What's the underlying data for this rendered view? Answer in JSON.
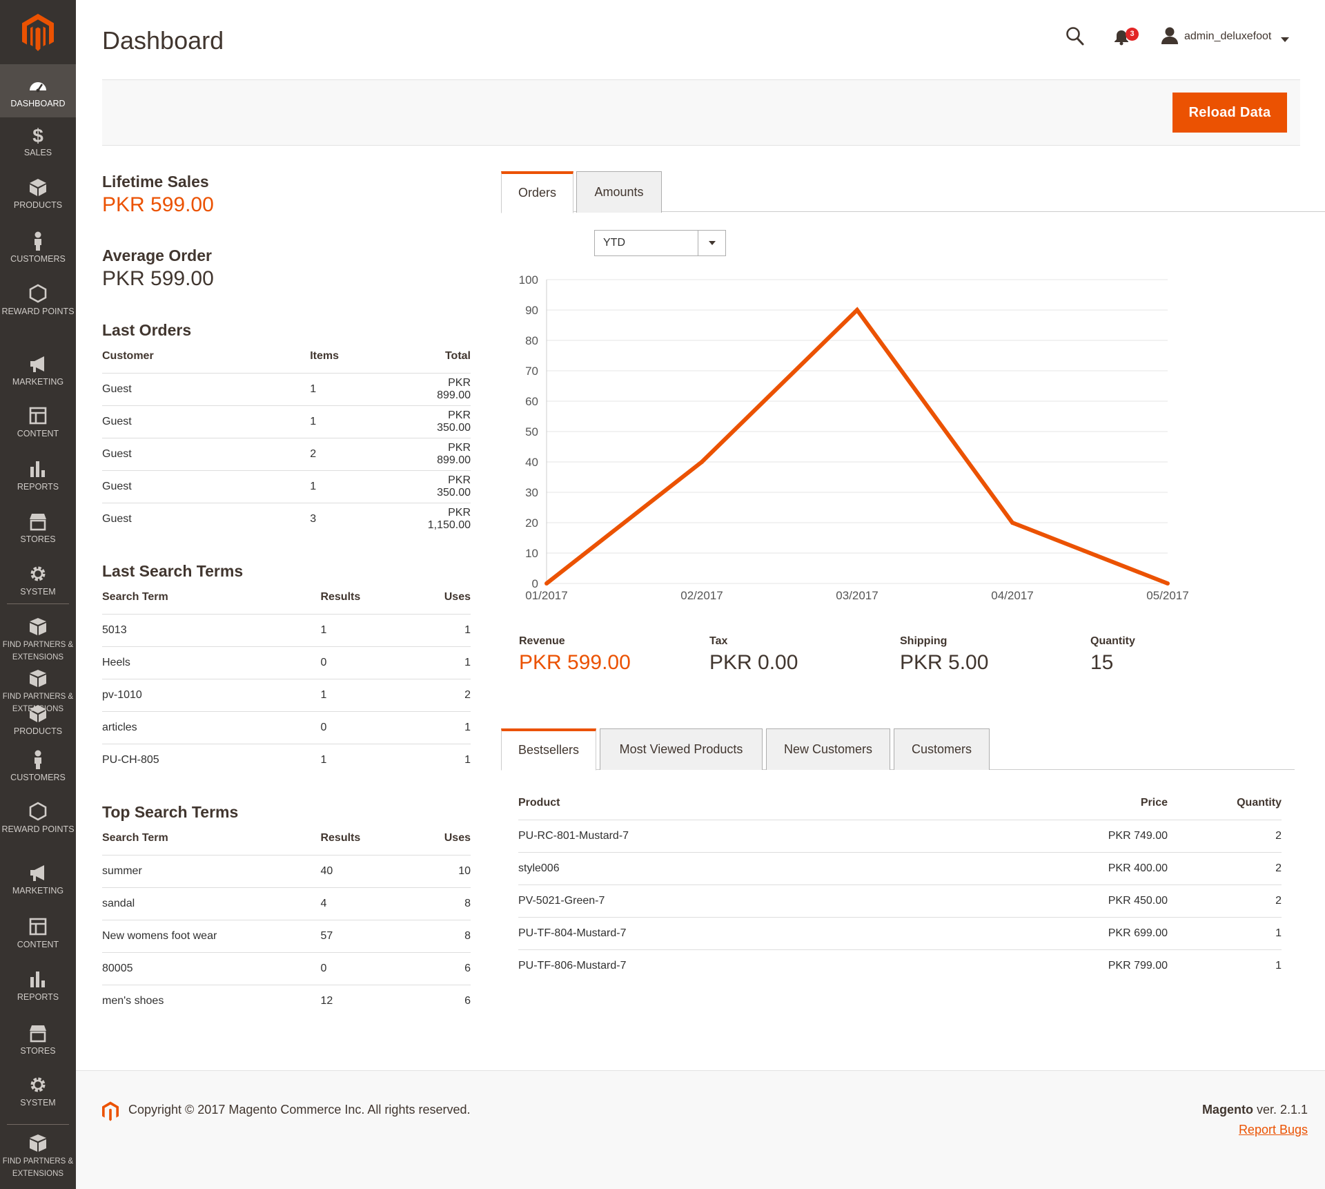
{
  "sidebar": {
    "items": [
      {
        "label": "Dashboard",
        "icon": "dashboard-icon"
      },
      {
        "label": "Sales",
        "icon": "dollar-icon"
      },
      {
        "label": "Products",
        "icon": "box-icon"
      },
      {
        "label": "Customers",
        "icon": "person-icon"
      },
      {
        "label": "Reward Points",
        "icon": "hexagon-icon"
      },
      {
        "label": "Marketing",
        "icon": "megaphone-icon"
      },
      {
        "label": "Content",
        "icon": "layout-icon"
      },
      {
        "label": "Reports",
        "icon": "bar-chart-icon"
      },
      {
        "label": "Stores",
        "icon": "store-icon"
      },
      {
        "label": "System",
        "icon": "gear-icon"
      },
      {
        "label": "Find Partners & Extensions",
        "icon": "cubes-icon"
      },
      {
        "label": "Find Partners & Extensions",
        "icon": "cubes-icon"
      },
      {
        "label": "Products",
        "icon": "box-icon"
      },
      {
        "label": "Customers",
        "icon": "person-icon"
      },
      {
        "label": "Reward Points",
        "icon": "hexagon-icon"
      },
      {
        "label": "Marketing",
        "icon": "megaphone-icon"
      },
      {
        "label": "Content",
        "icon": "layout-icon"
      },
      {
        "label": "Reports",
        "icon": "bar-chart-icon"
      },
      {
        "label": "Stores",
        "icon": "store-icon"
      },
      {
        "label": "System",
        "icon": "gear-icon"
      },
      {
        "label": "Find Partners & Extensions",
        "icon": "cubes-icon"
      }
    ]
  },
  "header": {
    "title": "Dashboard",
    "notifications_count": "3",
    "user": "admin_deluxefoot"
  },
  "actions": {
    "reload": "Reload Data"
  },
  "stats": {
    "lifetime_sales_label": "Lifetime Sales",
    "lifetime_sales_value": "PKR 599.00",
    "average_order_label": "Average Order",
    "average_order_value": "PKR 599.00"
  },
  "last_orders": {
    "title": "Last Orders",
    "columns": [
      "Customer",
      "Items",
      "Total"
    ],
    "rows": [
      [
        "Guest",
        "1",
        "PKR 899.00"
      ],
      [
        "Guest",
        "1",
        "PKR 350.00"
      ],
      [
        "Guest",
        "2",
        "PKR 899.00"
      ],
      [
        "Guest",
        "1",
        "PKR 350.00"
      ],
      [
        "Guest",
        "3",
        "PKR 1,150.00"
      ]
    ]
  },
  "last_search_terms": {
    "title": "Last Search Terms",
    "columns": [
      "Search Term",
      "Results",
      "Uses"
    ],
    "rows": [
      [
        "5013",
        "1",
        "1"
      ],
      [
        "Heels",
        "0",
        "1"
      ],
      [
        "pv-1010",
        "1",
        "2"
      ],
      [
        "articles",
        "0",
        "1"
      ],
      [
        "PU-CH-805",
        "1",
        "1"
      ]
    ]
  },
  "top_search_terms": {
    "title": "Top Search Terms",
    "columns": [
      "Search Term",
      "Results",
      "Uses"
    ],
    "rows": [
      [
        "summer",
        "40",
        "10"
      ],
      [
        "sandal",
        "4",
        "8"
      ],
      [
        "New womens foot wear",
        "57",
        "8"
      ],
      [
        "80005",
        "0",
        "6"
      ],
      [
        "men's shoes",
        "12",
        "6"
      ]
    ]
  },
  "chart_tabs": [
    "Orders",
    "Amounts"
  ],
  "period": "YTD",
  "chart_data": {
    "type": "line",
    "x": [
      "01/2017",
      "02/2017",
      "03/2017",
      "04/2017",
      "05/2017"
    ],
    "series": [
      {
        "values": [
          0,
          40,
          90,
          20,
          0
        ],
        "color": "#eb5202"
      }
    ],
    "ylim": [
      0,
      100
    ],
    "yticks": [
      0,
      10,
      20,
      30,
      40,
      50,
      60,
      70,
      80,
      90,
      100
    ],
    "grid": true
  },
  "totals": [
    {
      "label": "Revenue",
      "value": "PKR 599.00"
    },
    {
      "label": "Tax",
      "value": "PKR 0.00"
    },
    {
      "label": "Shipping",
      "value": "PKR 5.00"
    },
    {
      "label": "Quantity",
      "value": "15"
    }
  ],
  "product_tabs": [
    "Bestsellers",
    "Most Viewed Products",
    "New Customers",
    "Customers"
  ],
  "bestsellers": {
    "columns": [
      "Product",
      "Price",
      "Quantity"
    ],
    "rows": [
      [
        "PU-RC-801-Mustard-7",
        "PKR 749.00",
        "2"
      ],
      [
        "style006",
        "PKR 400.00",
        "2"
      ],
      [
        "PV-5021-Green-7",
        "PKR 450.00",
        "2"
      ],
      [
        "PU-TF-804-Mustard-7",
        "PKR 699.00",
        "1"
      ],
      [
        "PU-TF-806-Mustard-7",
        "PKR 799.00",
        "1"
      ]
    ]
  },
  "footer": {
    "copyright": "Copyright © 2017 Magento Commerce Inc. All rights reserved.",
    "brand": "Magento",
    "version": " ver. 2.1.1",
    "report_bugs": "Report Bugs"
  },
  "colors": {
    "accent": "#eb5202",
    "sidebar": "#373330"
  }
}
